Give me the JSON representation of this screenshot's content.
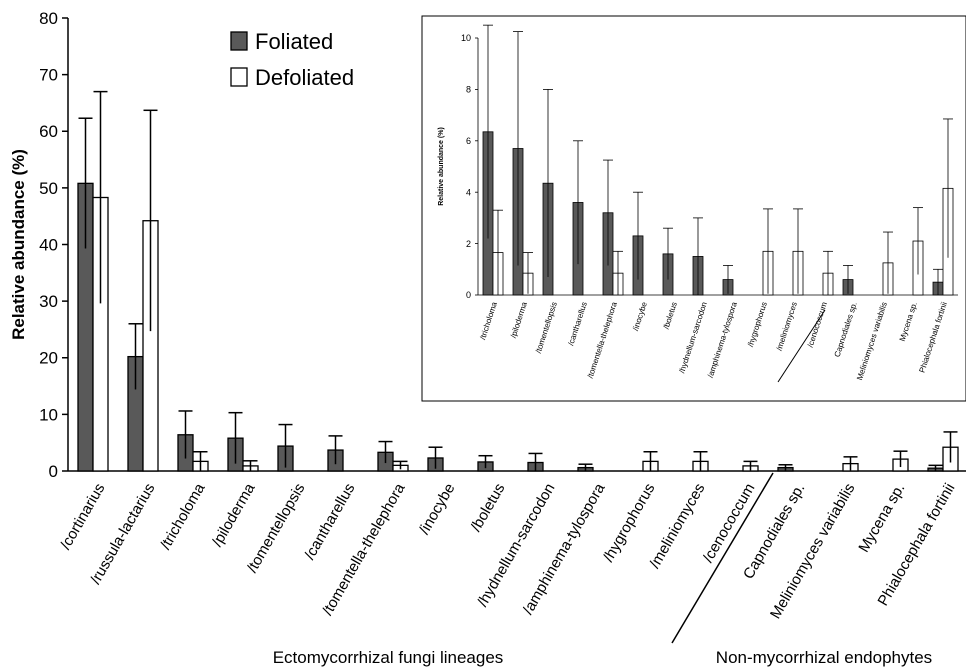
{
  "chart_data": [
    {
      "type": "bar",
      "ylabel": "Relative abundance (%)",
      "ylim": [
        0,
        80
      ],
      "yticks": [
        0,
        10,
        20,
        30,
        40,
        50,
        60,
        70,
        80
      ],
      "categories": [
        "/cortinarius",
        "/russula-lactarius",
        "/tricholoma",
        "/piloderma",
        "/tomentellopsis",
        "/cantharellus",
        "/tomentella-thelephora",
        "/inocybe",
        "/boletus",
        "/hydnellum-sarcodon",
        "/amphinema-tylospora",
        "/hygrophorus",
        "/meliniomyces",
        "/cenococcum",
        "Capnodiales sp.",
        "Meliniomyces variabilis",
        "Mycena sp.",
        "Phialocephala fortinii"
      ],
      "series": [
        {
          "name": "Foliated",
          "color": "#595959",
          "values": [
            50.8,
            20.2,
            6.4,
            5.8,
            4.4,
            3.7,
            3.3,
            2.3,
            1.6,
            1.5,
            0.6,
            0,
            0,
            0,
            0.6,
            0,
            0,
            0.5
          ],
          "errors": [
            11.5,
            5.8,
            4.2,
            4.5,
            3.8,
            2.5,
            1.9,
            1.9,
            1.1,
            1.6,
            0.6,
            0,
            0,
            0,
            0.5,
            0,
            0,
            0.5
          ]
        },
        {
          "name": "Defoliated",
          "color": "#ffffff",
          "values": [
            48.3,
            44.2,
            1.7,
            0.9,
            0,
            0,
            1.0,
            0,
            0,
            0,
            0,
            1.7,
            1.7,
            0.9,
            0,
            1.3,
            2.1,
            4.2
          ],
          "errors": [
            18.7,
            19.5,
            1.7,
            0.9,
            0,
            0,
            0.7,
            0,
            0,
            0,
            0,
            1.7,
            1.7,
            0.8,
            0,
            1.2,
            1.4,
            2.7
          ]
        }
      ],
      "legend": {
        "position": "top-center",
        "entries": [
          "Foliated",
          "Defoliated"
        ]
      },
      "group_labels": [
        "Ectomycorrhizal fungi lineages",
        "Non-mycorrhizal endophytes"
      ],
      "grid": false
    },
    {
      "type": "bar",
      "ylabel": "Relative abundance (%)",
      "ylim": [
        0,
        10
      ],
      "yticks": [
        0,
        2,
        4,
        6,
        8,
        10
      ],
      "categories": [
        "/tricholoma",
        "/piloderma",
        "/tomentellopsis",
        "/cantharellus",
        "/tomentella-thelephora",
        "/inocybe",
        "/boletus",
        "/hydnellum-sarcodon",
        "/amphinema-tylospora",
        "/hygrophorus",
        "/meliniomyces",
        "/cenococcum",
        "Capnodiales sp.",
        "Meliniomyces variabilis",
        "Mycena sp.",
        "Phialocephala fortinii"
      ],
      "series": [
        {
          "name": "Foliated",
          "color": "#595959",
          "values": [
            6.35,
            5.7,
            4.35,
            3.6,
            3.2,
            2.3,
            1.6,
            1.5,
            0.6,
            0,
            0,
            0,
            0.6,
            0,
            0,
            0.5
          ],
          "errors": [
            4.15,
            4.55,
            3.65,
            2.4,
            2.05,
            1.7,
            1.0,
            1.5,
            0.55,
            0,
            0,
            0,
            0.55,
            0,
            0,
            0.5
          ]
        },
        {
          "name": "Defoliated",
          "color": "#ffffff",
          "values": [
            1.65,
            0.85,
            0,
            0,
            0.85,
            0,
            0,
            0,
            0,
            1.7,
            1.7,
            0.85,
            0,
            1.25,
            2.1,
            4.15
          ],
          "errors": [
            1.65,
            0.8,
            0,
            0,
            0.85,
            0,
            0,
            0,
            0,
            1.65,
            1.65,
            0.85,
            0,
            1.2,
            1.3,
            2.7
          ]
        }
      ],
      "grid": false,
      "inset": true
    }
  ]
}
